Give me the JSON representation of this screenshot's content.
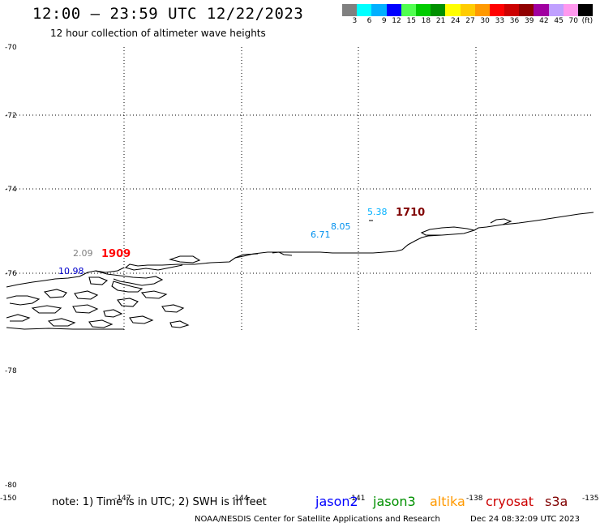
{
  "header": {
    "title": "12:00 – 23:59 UTC 12/22/2023",
    "subtitle": "12 hour collection of altimeter wave heights"
  },
  "colorbar": {
    "colors": [
      "#808080",
      "#00ffff",
      "#00b0ff",
      "#0000ff",
      "#50ff50",
      "#00cc00",
      "#009000",
      "#ffff00",
      "#ffcc00",
      "#ff9900",
      "#ff0000",
      "#cc0000",
      "#900000",
      "#a000a0",
      "#c0a0ff",
      "#ff99ee",
      "#000000"
    ],
    "labels": [
      "3",
      "6",
      "9",
      "12",
      "15",
      "18",
      "21",
      "24",
      "27",
      "30",
      "33",
      "36",
      "39",
      "42",
      "45",
      "70",
      "(ft)"
    ]
  },
  "axes": {
    "lat_labels": [
      "-70",
      "-72",
      "-74",
      "-76",
      "-78",
      "-80"
    ],
    "lon_labels": [
      "-150",
      "-147",
      "-144",
      "-141",
      "-138",
      "-135"
    ]
  },
  "observations": [
    {
      "text": "2.09",
      "color": "#808080"
    },
    {
      "text": "1909",
      "color": "#ff0000"
    },
    {
      "text": "10.98",
      "color": "#0000cc"
    },
    {
      "text": "5.38",
      "color": "#00b0ff"
    },
    {
      "text": "1710",
      "color": "#800000"
    },
    {
      "text": "8.05",
      "color": "#0090ee"
    },
    {
      "text": "6.71",
      "color": "#0090ee"
    }
  ],
  "footer": {
    "note": "note: 1) Time is in UTC; 2) SWH is in feet",
    "satellites": [
      {
        "name": "jason2",
        "color": "#0000ff"
      },
      {
        "name": "jason3",
        "color": "#009000"
      },
      {
        "name": "altika",
        "color": "#ff9900"
      },
      {
        "name": "cryosat",
        "color": "#cc0000"
      },
      {
        "name": "s3a",
        "color": "#800000"
      }
    ],
    "credit": "NOAA/NESDIS Center for Satellite Applications and Research",
    "timestamp": "Dec 24 08:32:09 UTC 2023"
  }
}
